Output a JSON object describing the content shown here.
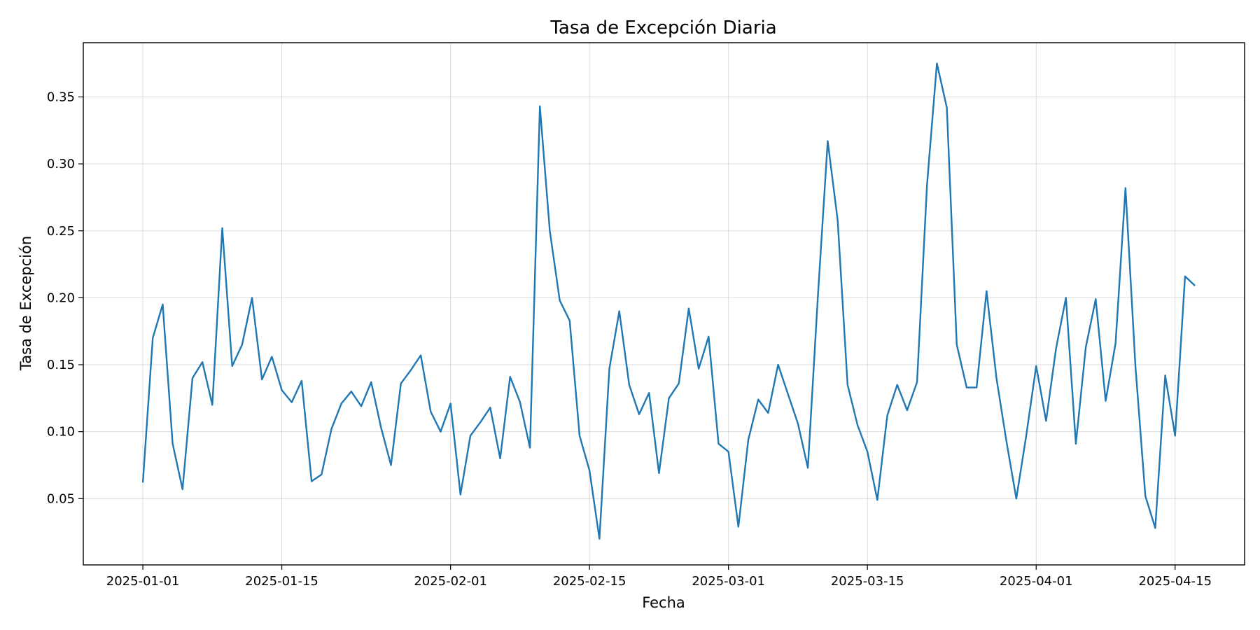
{
  "chart_data": {
    "type": "line",
    "title": "Tasa de Excepción Diaria",
    "xlabel": "Fecha",
    "ylabel": "Tasa de Excepción",
    "x_start": "2025-01-01",
    "x_ticks": [
      "2025-01-01",
      "2025-01-15",
      "2025-02-01",
      "2025-02-15",
      "2025-03-01",
      "2025-03-15",
      "2025-04-01",
      "2025-04-15"
    ],
    "xlim": [
      "2024-12-26",
      "2025-04-22"
    ],
    "ylim": [
      0.0005,
      0.3905
    ],
    "y_ticks": [
      0.05,
      0.1,
      0.15,
      0.2,
      0.25,
      0.3,
      0.35
    ],
    "y_tick_labels": [
      "0.05",
      "0.10",
      "0.15",
      "0.20",
      "0.25",
      "0.30",
      "0.35"
    ],
    "grid": true,
    "series": [
      {
        "color": "#1f77b4",
        "values": [
          0.062,
          0.17,
          0.195,
          0.091,
          0.057,
          0.14,
          0.152,
          0.12,
          0.252,
          0.149,
          0.165,
          0.2,
          0.139,
          0.156,
          0.131,
          0.122,
          0.138,
          0.063,
          0.068,
          0.102,
          0.121,
          0.13,
          0.119,
          0.137,
          0.103,
          0.075,
          0.136,
          0.146,
          0.157,
          0.115,
          0.1,
          0.121,
          0.053,
          0.097,
          0.107,
          0.118,
          0.08,
          0.141,
          0.122,
          0.088,
          0.343,
          0.25,
          0.198,
          0.183,
          0.097,
          0.071,
          0.02,
          0.147,
          0.19,
          0.135,
          0.113,
          0.129,
          0.069,
          0.125,
          0.136,
          0.192,
          0.147,
          0.171,
          0.091,
          0.085,
          0.029,
          0.094,
          0.124,
          0.114,
          0.15,
          0.128,
          0.106,
          0.073,
          0.2,
          0.317,
          0.258,
          0.135,
          0.105,
          0.085,
          0.049,
          0.112,
          0.135,
          0.116,
          0.137,
          0.284,
          0.375,
          0.342,
          0.165,
          0.133,
          0.133,
          0.205,
          0.14,
          0.093,
          0.05,
          0.097,
          0.149,
          0.108,
          0.162,
          0.2,
          0.091,
          0.163,
          0.199,
          0.123,
          0.166,
          0.282,
          0.149,
          0.052,
          0.028,
          0.142,
          0.097,
          0.216,
          0.209
        ]
      }
    ]
  }
}
